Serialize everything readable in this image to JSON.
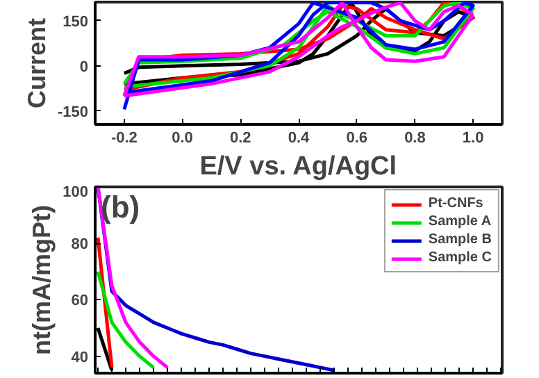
{
  "chart_data": [
    {
      "type": "line",
      "xlabel": "E/V vs. Ag/AgCl",
      "ylabel": "Current",
      "xlim": [
        -0.3,
        1.1
      ],
      "xticks": [
        {
          "value": -0.2,
          "label": "-0.2"
        },
        {
          "value": 0.0,
          "label": "0.0"
        },
        {
          "value": 0.2,
          "label": "0.2"
        },
        {
          "value": 0.4,
          "label": "0.4"
        },
        {
          "value": 0.6,
          "label": "0.6"
        },
        {
          "value": 0.8,
          "label": "0.8"
        },
        {
          "value": 1.0,
          "label": "1.0"
        }
      ],
      "ylim": [
        -195,
        212
      ],
      "yticks": [
        -150,
        0,
        150
      ],
      "grid": false,
      "legend": false,
      "series": [
        {
          "color": "#000000",
          "x": [
            -0.2,
            -0.15,
            0,
            0.2,
            0.4,
            0.5,
            0.6,
            0.65,
            0.7,
            0.75,
            0.8,
            0.9,
            1.0,
            0.95,
            0.9,
            0.85,
            0.8,
            0.7,
            0.65,
            0.6,
            0.58,
            0.5,
            0.45,
            0.4,
            0.2,
            0,
            -0.2
          ],
          "values": [
            -25,
            -5,
            0,
            5,
            15,
            40,
            100,
            150,
            190,
            150,
            110,
            100,
            160,
            180,
            150,
            80,
            50,
            60,
            100,
            180,
            210,
            100,
            40,
            10,
            -30,
            -40,
            -60
          ]
        },
        {
          "color": "#ff0000",
          "x": [
            -0.2,
            -0.15,
            0,
            0.2,
            0.4,
            0.5,
            0.6,
            0.65,
            0.7,
            0.8,
            0.9,
            1.0,
            0.95,
            0.9,
            0.85,
            0.8,
            0.7,
            0.6,
            0.55,
            0.5,
            0.4,
            0.2,
            0,
            -0.2
          ],
          "values": [
            -100,
            20,
            35,
            40,
            55,
            90,
            150,
            190,
            160,
            120,
            90,
            160,
            200,
            210,
            150,
            110,
            120,
            190,
            200,
            130,
            40,
            -20,
            -40,
            -80
          ]
        },
        {
          "color": "#00dd00",
          "x": [
            -0.2,
            -0.15,
            0,
            0.2,
            0.35,
            0.45,
            0.5,
            0.6,
            0.7,
            0.8,
            0.9,
            1.0,
            0.95,
            0.9,
            0.8,
            0.7,
            0.6,
            0.55,
            0.5,
            0.45,
            0.4,
            0.3,
            0.1,
            -0.2
          ],
          "values": [
            -60,
            10,
            15,
            25,
            70,
            150,
            180,
            130,
            60,
            40,
            60,
            190,
            210,
            200,
            100,
            100,
            150,
            170,
            200,
            130,
            60,
            0,
            -40,
            -70
          ]
        },
        {
          "color": "#0000ff",
          "x": [
            -0.2,
            -0.15,
            0,
            0.2,
            0.3,
            0.4,
            0.45,
            0.6,
            0.7,
            0.8,
            0.9,
            1.0,
            0.97,
            0.9,
            0.85,
            0.75,
            0.7,
            0.65,
            0.5,
            0.45,
            0.4,
            0.3,
            0.1,
            -0.2
          ],
          "values": [
            -145,
            20,
            20,
            35,
            60,
            140,
            210,
            160,
            70,
            55,
            80,
            200,
            210,
            150,
            120,
            150,
            190,
            210,
            210,
            170,
            100,
            10,
            -50,
            -90
          ]
        },
        {
          "color": "#ff00ff",
          "x": [
            -0.2,
            -0.15,
            0,
            0.2,
            0.4,
            0.45,
            0.5,
            0.55,
            0.6,
            0.65,
            0.7,
            0.8,
            0.9,
            1.0
          ],
          "values": [
            -100,
            30,
            30,
            35,
            80,
            120,
            160,
            210,
            130,
            60,
            20,
            15,
            30,
            170
          ]
        },
        {
          "color": "#ff00ff",
          "x": [
            1.0,
            0.95,
            0.9,
            0.85,
            0.8,
            0.75,
            0.7,
            0.65,
            0.6,
            0.55,
            0.5,
            0.4,
            0.3,
            0.1,
            -0.2
          ],
          "values": [
            170,
            200,
            180,
            120,
            150,
            210,
            195,
            175,
            150,
            130,
            100,
            30,
            -20,
            -60,
            -100
          ]
        }
      ]
    },
    {
      "type": "line",
      "ylabel": "nt(mA/mgPt)",
      "annotations": [
        "(b)"
      ],
      "ylim": [
        34,
        100
      ],
      "yticks": [
        40,
        60,
        80,
        100
      ],
      "tick_labels": "y",
      "grid": false,
      "legend": "top right",
      "categories": [
        null,
        null,
        null,
        null,
        null,
        null,
        null,
        null,
        null,
        null,
        null,
        null,
        null,
        null,
        null,
        null,
        null,
        null,
        null,
        null,
        null,
        null,
        null,
        null,
        null,
        null,
        null,
        null,
        null,
        null
      ],
      "series": [
        {
          "color": "#000000",
          "values": [
            50,
            35,
            null,
            null,
            null,
            null,
            null,
            null,
            null,
            null,
            null,
            null,
            null,
            null,
            null,
            null,
            null,
            null,
            null,
            null,
            null,
            null,
            null,
            null,
            null,
            null,
            null,
            null,
            null,
            null
          ]
        },
        {
          "name": "Pt-CNFs",
          "color": "#ff0000",
          "values": [
            82,
            36,
            null,
            null,
            null,
            null,
            null,
            null,
            null,
            null,
            null,
            null,
            null,
            null,
            null,
            null,
            null,
            null,
            null,
            null,
            null,
            null,
            null,
            null,
            null,
            null,
            null,
            null,
            null,
            null
          ]
        },
        {
          "name": "Sample A",
          "color": "#00dd00",
          "values": [
            70,
            52,
            45,
            40,
            36,
            null,
            null,
            null,
            null,
            null,
            null,
            null,
            null,
            null,
            null,
            null,
            null,
            null,
            null,
            null,
            null,
            null,
            null,
            null,
            null,
            null,
            null,
            null,
            null,
            null
          ]
        },
        {
          "name": "Sample B",
          "color": "#0000cc",
          "values": [
            100,
            63,
            58,
            55,
            52,
            50,
            48,
            46.5,
            45,
            44,
            42.5,
            41,
            40,
            39,
            38,
            37,
            36,
            35,
            null,
            null,
            null,
            null,
            null,
            null,
            null,
            null,
            null,
            null,
            null,
            null
          ]
        },
        {
          "name": "Sample C",
          "color": "#ff00ff",
          "values": [
            100,
            65,
            52,
            45,
            40,
            36,
            null,
            null,
            null,
            null,
            null,
            null,
            null,
            null,
            null,
            null,
            null,
            null,
            null,
            null,
            null,
            null,
            null,
            null,
            null,
            null,
            null,
            null,
            null,
            null
          ]
        }
      ]
    }
  ]
}
